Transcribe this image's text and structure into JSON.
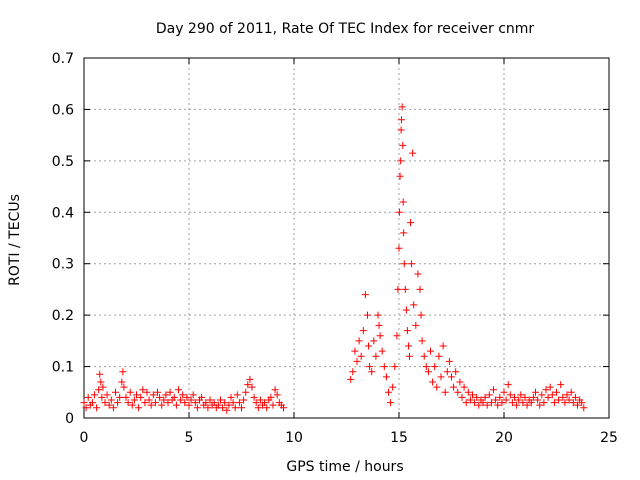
{
  "chart_data": {
    "type": "scatter",
    "title": "Day 290 of 2011, Rate Of TEC Index for receiver cnmr",
    "xlabel": "GPS time / hours",
    "ylabel": "ROTI / TECUs",
    "xlim": [
      0,
      25
    ],
    "ylim": [
      0,
      0.7
    ],
    "xticks": [
      "0",
      "5",
      "10",
      "15",
      "20",
      "25"
    ],
    "yticks": [
      "0",
      "0.1",
      "0.2",
      "0.3",
      "0.4",
      "0.5",
      "0.6",
      "0.7"
    ],
    "grid": true,
    "marker": "+",
    "color": "#ff0000",
    "series": [
      {
        "name": "ROTI",
        "points": [
          [
            0.0,
            0.03
          ],
          [
            0.1,
            0.02
          ],
          [
            0.2,
            0.04
          ],
          [
            0.3,
            0.025
          ],
          [
            0.4,
            0.03
          ],
          [
            0.5,
            0.045
          ],
          [
            0.6,
            0.02
          ],
          [
            0.7,
            0.055
          ],
          [
            0.75,
            0.085
          ],
          [
            0.8,
            0.07
          ],
          [
            0.85,
            0.04
          ],
          [
            0.9,
            0.06
          ],
          [
            1.0,
            0.03
          ],
          [
            1.1,
            0.045
          ],
          [
            1.2,
            0.025
          ],
          [
            1.3,
            0.035
          ],
          [
            1.4,
            0.02
          ],
          [
            1.5,
            0.05
          ],
          [
            1.6,
            0.03
          ],
          [
            1.7,
            0.04
          ],
          [
            1.8,
            0.07
          ],
          [
            1.85,
            0.09
          ],
          [
            1.9,
            0.06
          ],
          [
            2.0,
            0.04
          ],
          [
            2.1,
            0.03
          ],
          [
            2.2,
            0.05
          ],
          [
            2.3,
            0.025
          ],
          [
            2.4,
            0.035
          ],
          [
            2.5,
            0.045
          ],
          [
            2.6,
            0.02
          ],
          [
            2.7,
            0.04
          ],
          [
            2.8,
            0.055
          ],
          [
            2.9,
            0.03
          ],
          [
            3.0,
            0.05
          ],
          [
            3.1,
            0.035
          ],
          [
            3.2,
            0.025
          ],
          [
            3.3,
            0.045
          ],
          [
            3.4,
            0.03
          ],
          [
            3.5,
            0.05
          ],
          [
            3.6,
            0.04
          ],
          [
            3.7,
            0.025
          ],
          [
            3.8,
            0.035
          ],
          [
            3.9,
            0.045
          ],
          [
            4.0,
            0.03
          ],
          [
            4.1,
            0.05
          ],
          [
            4.2,
            0.035
          ],
          [
            4.3,
            0.04
          ],
          [
            4.4,
            0.025
          ],
          [
            4.5,
            0.055
          ],
          [
            4.6,
            0.035
          ],
          [
            4.7,
            0.045
          ],
          [
            4.8,
            0.03
          ],
          [
            4.9,
            0.04
          ],
          [
            5.0,
            0.025
          ],
          [
            5.1,
            0.035
          ],
          [
            5.2,
            0.045
          ],
          [
            5.3,
            0.03
          ],
          [
            5.4,
            0.02
          ],
          [
            5.5,
            0.035
          ],
          [
            5.6,
            0.04
          ],
          [
            5.7,
            0.025
          ],
          [
            5.8,
            0.03
          ],
          [
            5.9,
            0.02
          ],
          [
            6.0,
            0.035
          ],
          [
            6.1,
            0.025
          ],
          [
            6.2,
            0.03
          ],
          [
            6.3,
            0.02
          ],
          [
            6.4,
            0.025
          ],
          [
            6.5,
            0.035
          ],
          [
            6.6,
            0.02
          ],
          [
            6.7,
            0.03
          ],
          [
            6.8,
            0.015
          ],
          [
            6.9,
            0.025
          ],
          [
            7.0,
            0.04
          ],
          [
            7.1,
            0.03
          ],
          [
            7.2,
            0.02
          ],
          [
            7.3,
            0.045
          ],
          [
            7.4,
            0.03
          ],
          [
            7.5,
            0.02
          ],
          [
            7.6,
            0.035
          ],
          [
            7.7,
            0.05
          ],
          [
            7.8,
            0.065
          ],
          [
            7.9,
            0.075
          ],
          [
            8.0,
            0.06
          ],
          [
            8.1,
            0.04
          ],
          [
            8.2,
            0.03
          ],
          [
            8.3,
            0.02
          ],
          [
            8.4,
            0.035
          ],
          [
            8.5,
            0.025
          ],
          [
            8.6,
            0.03
          ],
          [
            8.7,
            0.02
          ],
          [
            8.8,
            0.035
          ],
          [
            8.9,
            0.04
          ],
          [
            9.0,
            0.025
          ],
          [
            9.1,
            0.055
          ],
          [
            9.2,
            0.045
          ],
          [
            9.3,
            0.03
          ],
          [
            9.4,
            0.025
          ],
          [
            9.5,
            0.02
          ],
          [
            12.7,
            0.075
          ],
          [
            12.8,
            0.09
          ],
          [
            12.9,
            0.13
          ],
          [
            13.0,
            0.11
          ],
          [
            13.1,
            0.15
          ],
          [
            13.2,
            0.12
          ],
          [
            13.3,
            0.17
          ],
          [
            13.4,
            0.24
          ],
          [
            13.5,
            0.2
          ],
          [
            13.55,
            0.14
          ],
          [
            13.6,
            0.1
          ],
          [
            13.7,
            0.09
          ],
          [
            13.8,
            0.15
          ],
          [
            13.9,
            0.12
          ],
          [
            14.0,
            0.2
          ],
          [
            14.05,
            0.18
          ],
          [
            14.1,
            0.16
          ],
          [
            14.2,
            0.13
          ],
          [
            14.3,
            0.1
          ],
          [
            14.4,
            0.08
          ],
          [
            14.5,
            0.05
          ],
          [
            14.6,
            0.03
          ],
          [
            14.7,
            0.06
          ],
          [
            14.8,
            0.1
          ],
          [
            14.9,
            0.16
          ],
          [
            14.95,
            0.25
          ],
          [
            15.0,
            0.33
          ],
          [
            15.02,
            0.4
          ],
          [
            15.05,
            0.47
          ],
          [
            15.08,
            0.5
          ],
          [
            15.1,
            0.56
          ],
          [
            15.12,
            0.58
          ],
          [
            15.15,
            0.605
          ],
          [
            15.18,
            0.53
          ],
          [
            15.2,
            0.42
          ],
          [
            15.22,
            0.36
          ],
          [
            15.25,
            0.3
          ],
          [
            15.3,
            0.25
          ],
          [
            15.35,
            0.21
          ],
          [
            15.4,
            0.17
          ],
          [
            15.45,
            0.14
          ],
          [
            15.5,
            0.12
          ],
          [
            15.55,
            0.38
          ],
          [
            15.6,
            0.3
          ],
          [
            15.65,
            0.515
          ],
          [
            15.7,
            0.22
          ],
          [
            15.8,
            0.18
          ],
          [
            15.9,
            0.28
          ],
          [
            16.0,
            0.25
          ],
          [
            16.05,
            0.2
          ],
          [
            16.1,
            0.15
          ],
          [
            16.2,
            0.12
          ],
          [
            16.3,
            0.1
          ],
          [
            16.4,
            0.09
          ],
          [
            16.5,
            0.13
          ],
          [
            16.6,
            0.07
          ],
          [
            16.7,
            0.1
          ],
          [
            16.8,
            0.06
          ],
          [
            16.9,
            0.12
          ],
          [
            17.0,
            0.08
          ],
          [
            17.1,
            0.14
          ],
          [
            17.2,
            0.05
          ],
          [
            17.3,
            0.09
          ],
          [
            17.4,
            0.11
          ],
          [
            17.5,
            0.08
          ],
          [
            17.6,
            0.06
          ],
          [
            17.7,
            0.09
          ],
          [
            17.8,
            0.05
          ],
          [
            17.9,
            0.07
          ],
          [
            18.0,
            0.04
          ],
          [
            18.1,
            0.06
          ],
          [
            18.2,
            0.03
          ],
          [
            18.3,
            0.05
          ],
          [
            18.4,
            0.035
          ],
          [
            18.5,
            0.045
          ],
          [
            18.6,
            0.03
          ],
          [
            18.7,
            0.04
          ],
          [
            18.8,
            0.025
          ],
          [
            18.9,
            0.035
          ],
          [
            19.0,
            0.03
          ],
          [
            19.1,
            0.04
          ],
          [
            19.2,
            0.025
          ],
          [
            19.3,
            0.045
          ],
          [
            19.4,
            0.03
          ],
          [
            19.5,
            0.055
          ],
          [
            19.6,
            0.035
          ],
          [
            19.7,
            0.025
          ],
          [
            19.8,
            0.04
          ],
          [
            19.9,
            0.03
          ],
          [
            20.0,
            0.05
          ],
          [
            20.1,
            0.035
          ],
          [
            20.2,
            0.065
          ],
          [
            20.3,
            0.045
          ],
          [
            20.4,
            0.03
          ],
          [
            20.5,
            0.04
          ],
          [
            20.6,
            0.025
          ],
          [
            20.7,
            0.035
          ],
          [
            20.8,
            0.045
          ],
          [
            20.9,
            0.03
          ],
          [
            21.0,
            0.04
          ],
          [
            21.1,
            0.025
          ],
          [
            21.2,
            0.035
          ],
          [
            21.3,
            0.03
          ],
          [
            21.4,
            0.04
          ],
          [
            21.5,
            0.05
          ],
          [
            21.6,
            0.035
          ],
          [
            21.7,
            0.025
          ],
          [
            21.8,
            0.045
          ],
          [
            21.9,
            0.03
          ],
          [
            22.0,
            0.055
          ],
          [
            22.1,
            0.04
          ],
          [
            22.2,
            0.06
          ],
          [
            22.3,
            0.045
          ],
          [
            22.4,
            0.03
          ],
          [
            22.5,
            0.05
          ],
          [
            22.6,
            0.035
          ],
          [
            22.7,
            0.065
          ],
          [
            22.8,
            0.04
          ],
          [
            22.9,
            0.03
          ],
          [
            23.0,
            0.045
          ],
          [
            23.1,
            0.035
          ],
          [
            23.2,
            0.05
          ],
          [
            23.3,
            0.03
          ],
          [
            23.4,
            0.04
          ],
          [
            23.5,
            0.025
          ],
          [
            23.6,
            0.035
          ],
          [
            23.7,
            0.03
          ],
          [
            23.8,
            0.02
          ]
        ]
      }
    ]
  }
}
